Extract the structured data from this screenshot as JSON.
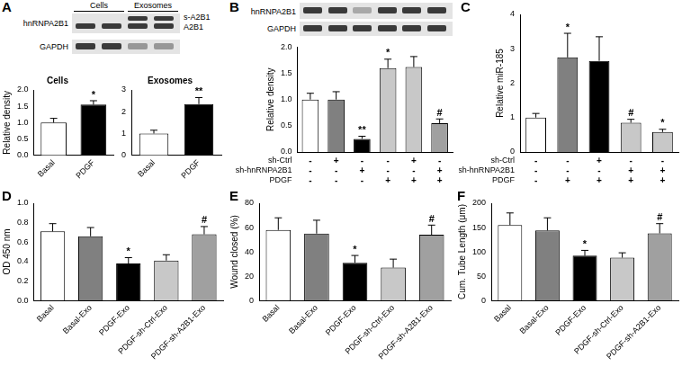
{
  "blots": [
    {
      "panel": "A",
      "headers": [
        "Cells",
        "Exosomes"
      ],
      "rows": [
        "hnRNPA2B1",
        "GAPDH"
      ],
      "band_labels": [
        "s-A2B1",
        "A2B1"
      ]
    },
    {
      "panel": "B",
      "rows": [
        "hnRNPA2B1",
        "GAPDH"
      ]
    }
  ],
  "chart_data": [
    {
      "type": "bar",
      "title": "Cells",
      "y_label": "Relative density",
      "categories": [
        "Basal",
        "PDGF"
      ],
      "values": [
        1.0,
        1.55
      ],
      "errors": [
        0.13,
        0.12
      ],
      "annotations": [
        null,
        "*"
      ],
      "colors": [
        "#ffffff",
        "#000000"
      ],
      "ylim": [
        0,
        2
      ],
      "yticks": [
        {
          "value": 0,
          "label": "0.0"
        },
        {
          "value": 0.5,
          "label": "0.5"
        },
        {
          "value": 1,
          "label": "1.0"
        },
        {
          "value": 1.5,
          "label": "1.5"
        },
        {
          "value": 2,
          "label": "2.0"
        }
      ]
    },
    {
      "type": "bar",
      "title": "Exosomes",
      "categories": [
        "Basal",
        "PDGF"
      ],
      "values": [
        1.0,
        2.35
      ],
      "errors": [
        0.15,
        0.3
      ],
      "annotations": [
        null,
        "**"
      ],
      "colors": [
        "#ffffff",
        "#000000"
      ],
      "ylim": [
        0,
        3
      ],
      "yticks": [
        0,
        1,
        2,
        3
      ]
    },
    {
      "type": "bar",
      "y_label": "Relative density",
      "categories": [
        null,
        null,
        null,
        null,
        null,
        null
      ],
      "values": [
        1.0,
        1.0,
        0.25,
        1.6,
        1.62,
        0.55
      ],
      "errors": [
        0.12,
        0.15,
        0.05,
        0.17,
        0.2,
        0.08
      ],
      "annotations": [
        null,
        null,
        "**",
        "*",
        null,
        "#"
      ],
      "colors": [
        "#ffffff",
        "#808080",
        "#000000",
        "#c8c8c8",
        "#c8c8c8",
        "#a0a0a0"
      ],
      "conditions": [
        {
          "name": "sh-Ctrl",
          "values": [
            "-",
            "+",
            "-",
            "-",
            "+",
            "-"
          ]
        },
        {
          "name": "sh-hnRNPA2B1",
          "values": [
            "-",
            "-",
            "+",
            "-",
            "-",
            "+"
          ]
        },
        {
          "name": "PDGF",
          "values": [
            "-",
            "-",
            "-",
            "+",
            "+",
            "+"
          ]
        }
      ],
      "ylim": [
        0,
        2
      ],
      "yticks": [
        {
          "value": 0,
          "label": "0.0"
        },
        {
          "value": 0.5,
          "label": "0.5"
        },
        {
          "value": 1,
          "label": "1.0"
        },
        {
          "value": 1.5,
          "label": "1.5"
        },
        {
          "value": 2,
          "label": "2.0"
        }
      ]
    },
    {
      "type": "bar",
      "panel": "C",
      "y_label": "Relative miR-185",
      "categories": [
        null,
        null,
        null,
        null,
        null
      ],
      "values": [
        1.0,
        2.75,
        2.65,
        0.85,
        0.58
      ],
      "errors": [
        0.12,
        0.7,
        0.7,
        0.1,
        0.08
      ],
      "annotations": [
        null,
        "*",
        null,
        "#",
        "*"
      ],
      "colors": [
        "#ffffff",
        "#808080",
        "#000000",
        "#c8c8c8",
        "#c8c8c8"
      ],
      "conditions": [
        {
          "name": "sh-Ctrl",
          "values": [
            "-",
            "-",
            "+",
            "-",
            "-"
          ]
        },
        {
          "name": "sh-hnRNPA2B1",
          "values": [
            "-",
            "-",
            "-",
            "+",
            "+"
          ]
        },
        {
          "name": "PDGF",
          "values": [
            "-",
            "+",
            "+",
            "+",
            "+"
          ]
        }
      ],
      "ylim": [
        0,
        4
      ],
      "yticks": [
        0,
        1,
        2,
        3,
        4
      ]
    },
    {
      "type": "bar",
      "panel": "D",
      "y_label": "OD 450 nm",
      "categories": [
        "Basal",
        "Basal-Exo",
        "PDGF-Exo",
        "PDGF-sh-Ctrl-Exo",
        "PDGF-sh-A2B1-Exo"
      ],
      "values": [
        0.71,
        0.66,
        0.38,
        0.41,
        0.68
      ],
      "errors": [
        0.08,
        0.09,
        0.06,
        0.06,
        0.08
      ],
      "annotations": [
        null,
        null,
        "*",
        null,
        "#"
      ],
      "colors": [
        "#ffffff",
        "#808080",
        "#000000",
        "#c8c8c8",
        "#a0a0a0"
      ],
      "ylim": [
        0,
        1
      ],
      "yticks": [
        {
          "value": 0,
          "label": "0.0"
        },
        {
          "value": 0.2,
          "label": "0.2"
        },
        {
          "value": 0.4,
          "label": "0.4"
        },
        {
          "value": 0.6,
          "label": "0.6"
        },
        {
          "value": 0.8,
          "label": "0.8"
        },
        {
          "value": 1,
          "label": "1.0"
        }
      ]
    },
    {
      "type": "bar",
      "panel": "E",
      "y_label": "Wound closed (%)",
      "categories": [
        "Basal",
        "Basal-Exo",
        "PDGF-Exo",
        "PDGF-sh-Ctrl-Exo",
        "PDGF-sh-A2B1-Exo"
      ],
      "values": [
        58,
        55,
        31,
        27,
        54
      ],
      "errors": [
        10,
        11,
        6,
        7,
        8
      ],
      "annotations": [
        null,
        null,
        "*",
        null,
        "#"
      ],
      "colors": [
        "#ffffff",
        "#808080",
        "#000000",
        "#c8c8c8",
        "#a0a0a0"
      ],
      "ylim": [
        0,
        80
      ],
      "yticks": [
        0,
        20,
        40,
        60,
        80
      ]
    },
    {
      "type": "bar",
      "panel": "F",
      "y_label": "Cum. Tube Length (μm)",
      "categories": [
        "Basal",
        "Basal-Exo",
        "PDGF-Exo",
        "PDGF-sh-Ctrl-Exo",
        "PDGF-sh-A2B1-Exo"
      ],
      "values": [
        155,
        144,
        92,
        88,
        138
      ],
      "errors": [
        25,
        26,
        11,
        10,
        20
      ],
      "annotations": [
        null,
        null,
        "*",
        null,
        "#"
      ],
      "colors": [
        "#ffffff",
        "#808080",
        "#000000",
        "#c8c8c8",
        "#a0a0a0"
      ],
      "ylim": [
        0,
        200
      ],
      "yticks": [
        0,
        50,
        100,
        150,
        200
      ]
    }
  ]
}
